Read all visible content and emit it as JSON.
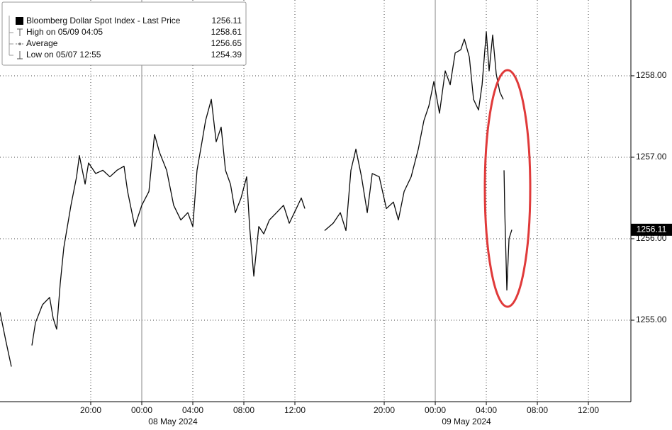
{
  "chart_data": {
    "type": "line",
    "legend": {
      "title": "Bloomberg Dollar Spot Index - Last Price",
      "title_value": 1256.11,
      "rows": [
        {
          "label": "High on 05/09 04:05",
          "value": 1258.61
        },
        {
          "label": "Average",
          "value": 1256.65
        },
        {
          "label": "Low on 05/07 12:55",
          "value": 1254.39
        }
      ]
    },
    "x": [
      12.89,
      13.33,
      13.78,
      14.5,
      15.39,
      15.67,
      16.22,
      16.78,
      17.06,
      17.33,
      17.61,
      17.89,
      18.45,
      18.89,
      19.11,
      19.56,
      19.83,
      20.39,
      20.95,
      21.5,
      22.06,
      22.61,
      22.89,
      23.45,
      24,
      24.56,
      25,
      25.39,
      25.95,
      26.5,
      27.06,
      27.61,
      28,
      28.33,
      28.72,
      29,
      29.45,
      29.83,
      30.22,
      30.56,
      30.95,
      31.33,
      31.78,
      32.22,
      32.45,
      32.78,
      33.17,
      33.56,
      34,
      34.56,
      35.11,
      35.56,
      36.11,
      36.5,
      36.78,
      37.5,
      38.33,
      39,
      39.56,
      40,
      40.39,
      40.78,
      41.22,
      41.67,
      42.06,
      42.61,
      43.17,
      43.72,
      44.11,
      44.56,
      45.11,
      45.67,
      46.11,
      46.5,
      46.89,
      47.33,
      47.78,
      48.17,
      48.56,
      49,
      49.28,
      49.67,
      50,
      50.39,
      50.67,
      51,
      51.22,
      51.5,
      51.78,
      52.06,
      52.33,
      52.36,
      52.39,
      52.45,
      52.61,
      52.78,
      53
    ],
    "series": [
      {
        "name": "Bloomberg Dollar Spot Index - Last Price",
        "color": "#0a0a0a",
        "values": [
          1255.1,
          1254.76,
          1254.43,
          null,
          1254.69,
          1254.97,
          1255.19,
          1255.28,
          1255.02,
          1254.89,
          1255.45,
          1255.89,
          1256.41,
          1256.76,
          1257.02,
          1256.67,
          1256.93,
          1256.8,
          1256.84,
          1256.76,
          1256.84,
          1256.89,
          1256.58,
          1256.15,
          1256.41,
          1256.58,
          1257.28,
          1257.06,
          1256.84,
          1256.41,
          1256.23,
          1256.32,
          1256.15,
          1256.84,
          1257.19,
          1257.45,
          1257.71,
          1257.19,
          1257.37,
          1256.84,
          1256.67,
          1256.32,
          1256.5,
          1256.76,
          1256.15,
          1255.54,
          1256.15,
          1256.06,
          1256.23,
          1256.32,
          1256.41,
          1256.19,
          1256.37,
          1256.5,
          1256.37,
          null,
          1256.1,
          1256.19,
          1256.32,
          1256.1,
          1256.84,
          1257.1,
          1256.76,
          1256.32,
          1256.8,
          1256.76,
          1256.37,
          1256.45,
          1256.23,
          1256.58,
          1256.76,
          1257.1,
          1257.45,
          1257.63,
          1257.93,
          1257.54,
          1258.06,
          1257.89,
          1258.28,
          1258.32,
          1258.45,
          1258.23,
          1257.71,
          1257.58,
          1257.89,
          1258.54,
          1258.06,
          1258.5,
          1258.02,
          1257.8,
          1257.71,
          null,
          1256.84,
          1256.32,
          1255.37,
          1256.0,
          1256.11
        ]
      }
    ],
    "xlim": [
      12.89,
      62.33
    ],
    "xticks": [
      {
        "value": 20,
        "label": "20:00"
      },
      {
        "value": 24,
        "label": "00:00"
      },
      {
        "value": 28,
        "label": "04:00"
      },
      {
        "value": 32,
        "label": "08:00"
      },
      {
        "value": 36,
        "label": "12:00"
      },
      {
        "value": 43,
        "label": "20:00"
      },
      {
        "value": 47,
        "label": "00:00"
      },
      {
        "value": 51,
        "label": "04:00"
      },
      {
        "value": 55,
        "label": "08:00"
      },
      {
        "value": 59,
        "label": "12:00"
      }
    ],
    "x_group_labels": [
      "08 May 2024",
      "09 May 2024"
    ],
    "ylim": [
      1254.0,
      1258.93
    ],
    "yticks": [
      {
        "value": 1255,
        "label": "1255.00"
      },
      {
        "value": 1256,
        "label": "1256.00"
      },
      {
        "value": 1257,
        "label": "1257.00"
      },
      {
        "value": 1258,
        "label": "1258.00"
      }
    ],
    "grid": true
  }
}
